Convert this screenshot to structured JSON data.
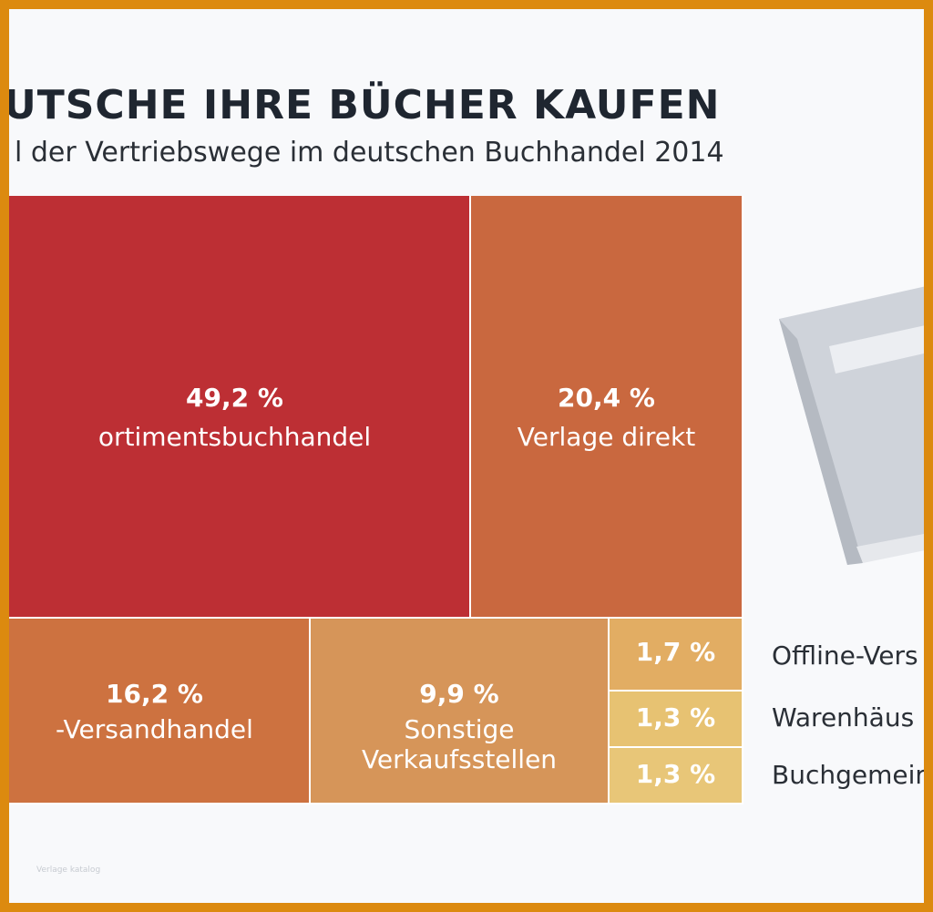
{
  "title": "UTSCHE IHRE BÜCHER KAUFEN",
  "subtitle": "l der Vertriebswege im deutschen Buchhandel 2014",
  "watermark": "Verlage katalog",
  "chart_data": {
    "type": "treemap",
    "title": "UTSCHE IHRE BÜCHER KAUFEN",
    "subtitle": "l der Vertriebswege im deutschen Buchhandel 2014",
    "unit": "%",
    "items": [
      {
        "id": "sortiment",
        "value": 49.2,
        "value_label": "49,2 %",
        "label": "ortimentsbuchhandel",
        "color": "#bd2f34"
      },
      {
        "id": "verlage",
        "value": 20.4,
        "value_label": "20,4 %",
        "label": "Verlage direkt",
        "color": "#c9683f"
      },
      {
        "id": "versand",
        "value": 16.2,
        "value_label": "16,2 %",
        "label": "-Versandhandel",
        "color": "#cd7240"
      },
      {
        "id": "sonstige",
        "value": 9.9,
        "value_label": "9,9 %",
        "label": "Sonstige Verkaufsstellen",
        "label_lines": [
          "Sonstige",
          "Verkaufsstellen"
        ],
        "color": "#d69559"
      },
      {
        "id": "offline",
        "value": 1.7,
        "value_label": "1,7 %",
        "label": "Offline-Vers",
        "color": "#e2ad63"
      },
      {
        "id": "warenhaus",
        "value": 1.3,
        "value_label": "1,3 %",
        "label": "Warenhäus",
        "color": "#e7c272"
      },
      {
        "id": "buchgemein",
        "value": 1.3,
        "value_label": "1,3 %",
        "label": "Buchgemeir",
        "color": "#e8c678"
      }
    ]
  }
}
